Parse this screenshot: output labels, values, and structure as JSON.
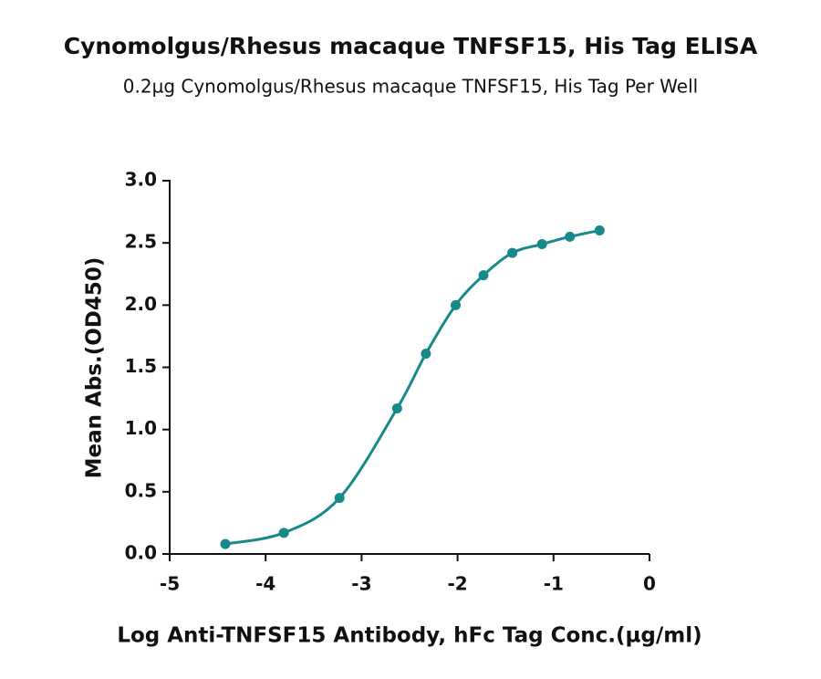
{
  "chart_data": {
    "type": "scatter",
    "title": "Cynomolgus/Rhesus macaque TNFSF15, His Tag ELISA",
    "subtitle": "0.2µg Cynomolgus/Rhesus macaque TNFSF15, His Tag Per Well",
    "x_label": "Log Anti-TNFSF15 Antibody, hFc Tag Conc.(µg/ml)",
    "y_label": "Mean Abs.(OD450)",
    "series": [
      {
        "color": "#17898a",
        "x": [
          -4.42,
          -3.81,
          -3.23,
          -2.63,
          -2.33,
          -2.02,
          -1.73,
          -1.43,
          -1.12,
          -0.83,
          -0.52
        ],
        "values": [
          0.08,
          0.17,
          0.45,
          1.17,
          1.61,
          2.0,
          2.24,
          2.42,
          2.49,
          2.55,
          2.6
        ]
      }
    ],
    "xlim": [
      -5,
      0
    ],
    "xticks": [
      -5,
      -4,
      -3,
      -2,
      -1,
      0
    ],
    "ylim": [
      0,
      3
    ],
    "yticks": [
      {
        "value": 0,
        "label": "0.0"
      },
      {
        "value": 0.5,
        "label": "0.5"
      },
      {
        "value": 1,
        "label": "1.0"
      },
      {
        "value": 1.5,
        "label": "1.5"
      },
      {
        "value": 2,
        "label": "2.0"
      },
      {
        "value": 2.5,
        "label": "2.5"
      },
      {
        "value": 3,
        "label": "3.0"
      }
    ],
    "grid": false
  }
}
